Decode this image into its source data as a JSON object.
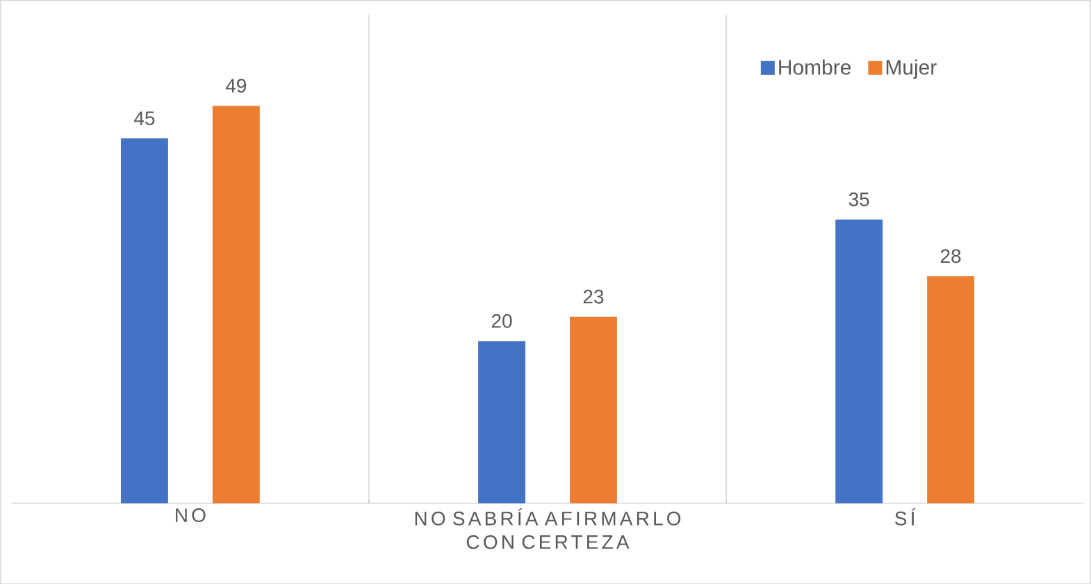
{
  "chart_data": {
    "type": "bar",
    "categories": [
      "NO",
      "NO SABRÍA AFIRMARLO CON CERTEZA",
      "SÍ"
    ],
    "series": [
      {
        "name": "Hombre",
        "color": "#4472c4",
        "values": [
          45,
          20,
          35
        ]
      },
      {
        "name": "Mujer",
        "color": "#ed7d31",
        "values": [
          49,
          23,
          28
        ]
      }
    ],
    "data_labels": true,
    "grid": "x",
    "legend": "top right"
  }
}
